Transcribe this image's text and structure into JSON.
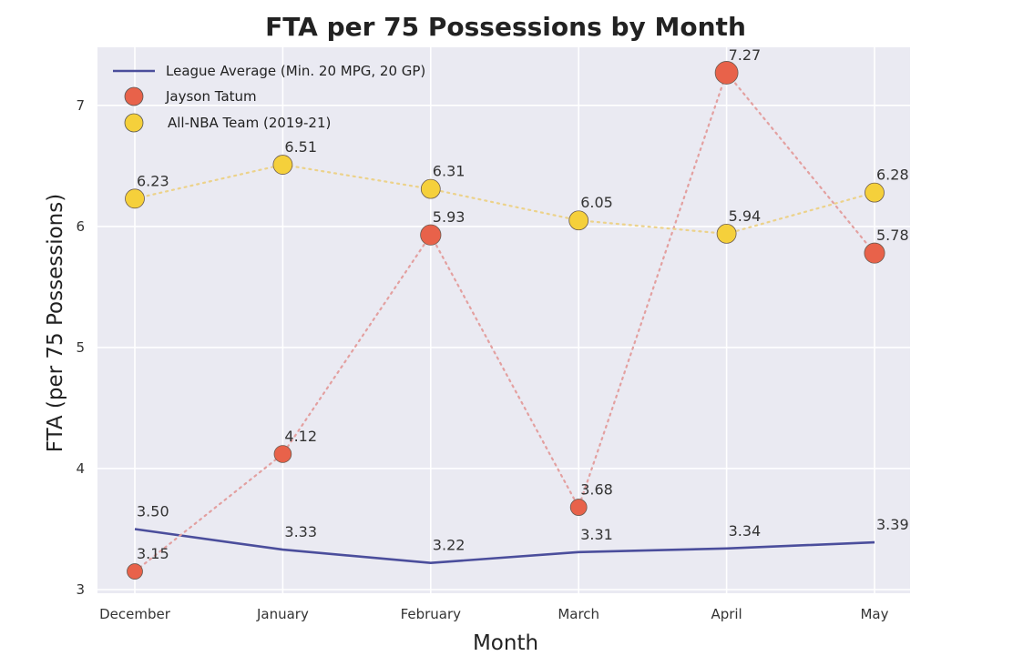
{
  "chart_data": {
    "type": "line",
    "title": "FTA per 75 Possessions by Month",
    "xlabel": "Month",
    "ylabel": "FTA (per 75 Possessions)",
    "categories": [
      "December",
      "January",
      "February",
      "March",
      "April",
      "May"
    ],
    "ylim": [
      2.97,
      7.48
    ],
    "yticks": [
      3,
      4,
      5,
      6,
      7
    ],
    "grid": true,
    "legend_placement": "top-left",
    "series": [
      {
        "name": "League Average (Min. 20 MPG, 20 GP)",
        "style": "solid-line",
        "color": "#4b4e9c",
        "values": [
          3.5,
          3.33,
          3.22,
          3.31,
          3.34,
          3.39
        ],
        "labels": [
          "3.50",
          "3.33",
          "3.22",
          "3.31",
          "3.34",
          "3.39"
        ]
      },
      {
        "name": "Jayson Tatum",
        "style": "dotted-markers",
        "color": "#e8624a",
        "line_color": "#e3a0a0",
        "values": [
          3.15,
          4.12,
          5.93,
          3.68,
          7.27,
          5.78
        ],
        "labels": [
          "3.15",
          "4.12",
          "5.93",
          "3.68",
          "7.27",
          "5.78"
        ]
      },
      {
        "name": "All-NBA Team (2019-21)",
        "style": "dotted-markers",
        "color": "#f5d03b",
        "line_color": "#ecd28a",
        "values": [
          6.23,
          6.51,
          6.31,
          6.05,
          5.94,
          6.28
        ],
        "labels": [
          "6.23",
          "6.51",
          "6.31",
          "6.05",
          "5.94",
          "6.28"
        ]
      }
    ]
  }
}
